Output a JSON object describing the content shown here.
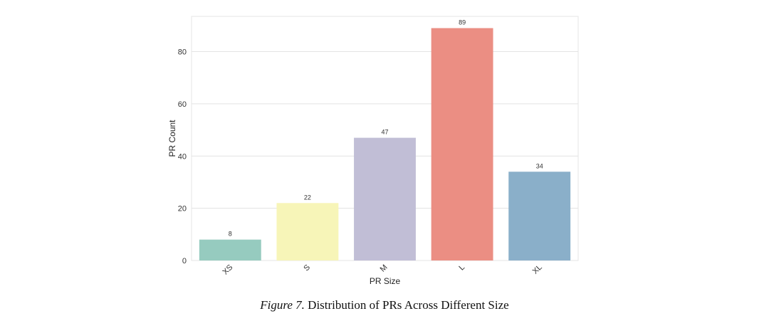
{
  "chart_data": {
    "type": "bar",
    "categories": [
      "XS",
      "S",
      "M",
      "L",
      "XL"
    ],
    "values": [
      8,
      22,
      47,
      89,
      34
    ],
    "colors": [
      "#96cbbf",
      "#f7f5b8",
      "#c1bed6",
      "#eb8e83",
      "#8aafc9"
    ],
    "xlabel": "PR Size",
    "ylabel": "PR Count",
    "ylim": [
      0,
      93.5
    ],
    "yticks": [
      0,
      20,
      40,
      60,
      80
    ],
    "grid": true
  },
  "caption": {
    "prefix": "Figure 7.",
    "text": " Distribution of PRs Across Different Size"
  }
}
